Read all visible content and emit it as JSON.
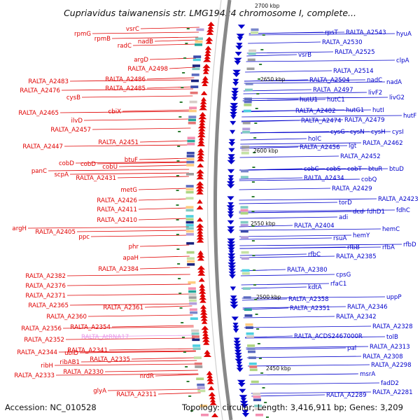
{
  "title": "Cupriavidus taiwanensis str. LMG19424 chromosome I, complete...",
  "footer": {
    "accession": "Accession: NC_010528",
    "topology": "Topology: circular; Length: 3,416,911 bp; Genes: 3,209"
  },
  "colors": {
    "minus_strand": "#e00000",
    "plus_strand": "#0000cc",
    "rna": "#e898e8",
    "backbone": "#888888"
  },
  "scale_labels": [
    "2700 kbp",
    "2650 kbp",
    "2600 kbp",
    "2550 kbp",
    "2500 kbp",
    "2450 kbp"
  ],
  "left_labels": [
    "vsrC",
    "rpmG",
    "rpmB",
    "radC",
    "nadB",
    "argD",
    "RALTA_A2498",
    "RALTA_A2483",
    "RALTA_A2486",
    "RALTA_A2476",
    "RALTA_A2485",
    "cysB",
    "RALTA_A2465",
    "cbiX",
    "ilvD",
    "RALTA_A2457",
    "RALTA_A2451",
    "RALTA_A2447",
    "btuF",
    "cobD",
    "cobD",
    "cobU",
    "panC",
    "scpA",
    "RALTA_A2431",
    "metG",
    "RALTA_A2426",
    "RALTA_A2411",
    "RALTA_A2410",
    "argH",
    "RALTA_A2405",
    "ppc",
    "phr",
    "apaH",
    "RALTA_A2384",
    "RALTA_A2382",
    "RALTA_A2376",
    "RALTA_A2371",
    "RALTA_A2365",
    "RALTA_A2361",
    "RALTA_A2360",
    "RALTA_A2356",
    "RALTA_A2354",
    "RALTA_A2352",
    "RALTA_A2344",
    "ubiD",
    "RALTA_A2341",
    "ribH",
    "ribAB1",
    "RALTA_A2335",
    "RALTA_A2333",
    "RALTA_A2330",
    "nrdR",
    "glyA",
    "RALTA_A2311"
  ],
  "rna_labels": [
    "RALTA_AtRNA17"
  ],
  "right_labels": [
    "rpsT",
    "RALTA_A2543",
    "hyuA",
    "RALTA_A2530",
    "RALTA_A2525",
    "clpA",
    "vsrB",
    "RALTA_A2514",
    "RALTA_A2504",
    "nadC",
    "nadA",
    "RALTA_A2497",
    "livF2",
    "livG2",
    "hutU1",
    "hutC1",
    "RALTA_A2482",
    "hutG1",
    "hutI",
    "hutF",
    "RALTA_A2474",
    "RALTA_A2479",
    "cysG",
    "cysN",
    "cysH",
    "cysI",
    "holC",
    "RALTA_A2456",
    "lgt",
    "RALTA_A2462",
    "RALTA_A2452",
    "cobC",
    "cobS",
    "cobT",
    "btuR",
    "btuD",
    "RALTA_A2434",
    "cobQ",
    "RALTA_A2429",
    "torD",
    "RALTA_A2423",
    "dcd",
    "fdhD1",
    "fdhC",
    "adi",
    "RALTA_A2404",
    "hemC",
    "hemY",
    "rsuA",
    "rfbB",
    "rfbA",
    "rfbD",
    "rfbC",
    "RALTA_A2385",
    "RALTA_A2380",
    "cpsG",
    "kdtA",
    "rfaC1",
    "RALTA_A2358",
    "RALTA_A2351",
    "RALTA_A2346",
    "uppP",
    "RALTA_A2342",
    "RALTA_A2328",
    "RALTA_ACDS2467000R",
    "tolB",
    "pal",
    "RALTA_A2313",
    "RALTA_A2308",
    "RALTA_A2298",
    "msrA",
    "fadD2",
    "RALTA_A2289",
    "RALTA_A2281"
  ]
}
